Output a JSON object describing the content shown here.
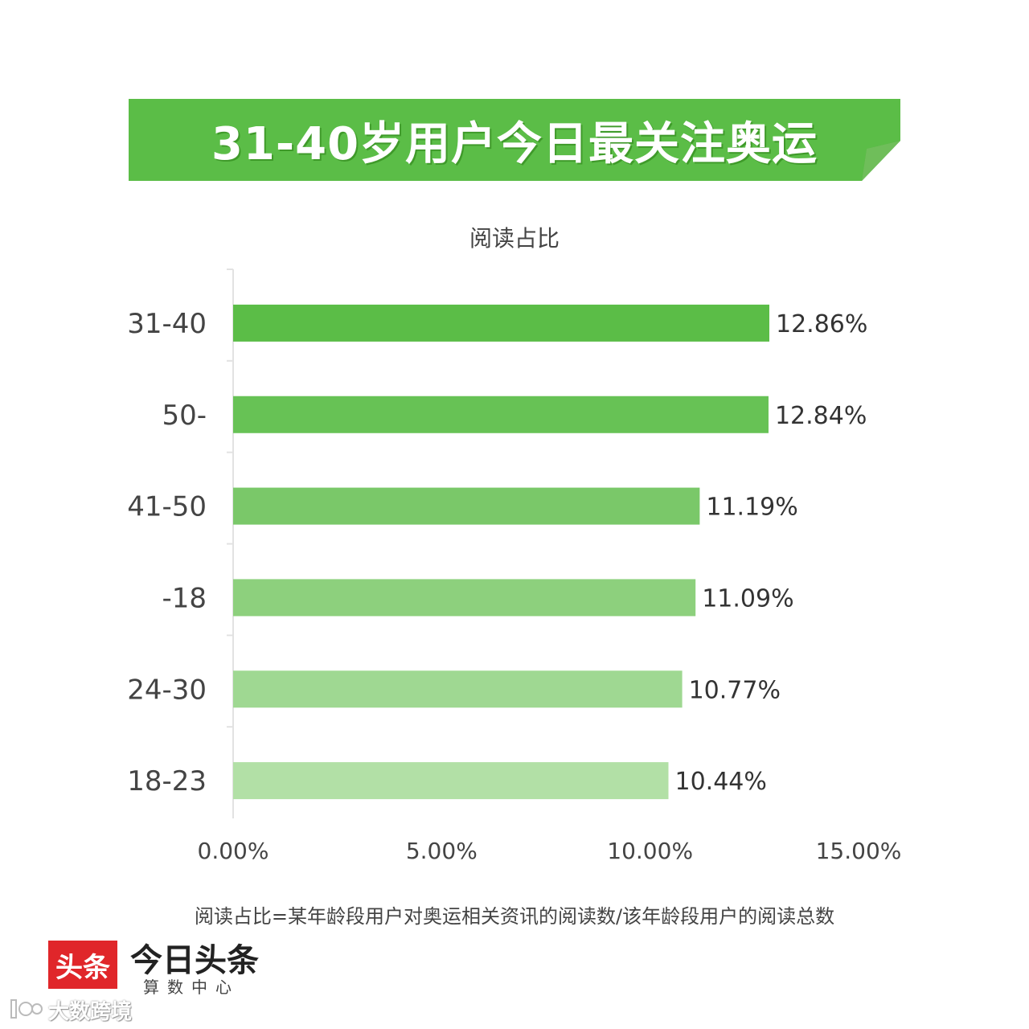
{
  "banner": {
    "title": "31-40岁用户今日最关注奥运",
    "color": "#5bbd47",
    "fold_color": "#3f9a2a"
  },
  "chart_data": {
    "type": "bar",
    "orientation": "horizontal",
    "title": "阅读占比",
    "categories": [
      "31-40",
      "50-",
      "41-50",
      "-18",
      "24-30",
      "18-23"
    ],
    "values": [
      12.86,
      12.84,
      11.19,
      11.09,
      10.77,
      10.44
    ],
    "value_labels": [
      "12.86%",
      "12.84%",
      "11.19%",
      "11.09%",
      "10.77%",
      "10.44%"
    ],
    "bar_colors": [
      "#5bbd47",
      "#67c255",
      "#7ac869",
      "#8dd07d",
      "#9fd892",
      "#b2e0a6"
    ],
    "xlim": [
      0,
      15
    ],
    "xticks": [
      0,
      5,
      10,
      15
    ],
    "xtick_labels": [
      "0.00%",
      "5.00%",
      "10.00%",
      "15.00%"
    ],
    "xlabel": "",
    "ylabel": "",
    "grid": false,
    "legend": "none"
  },
  "footnote": "阅读占比=某年龄段用户对奥运相关资讯的阅读数/该年龄段用户的阅读总数",
  "logo": {
    "badge": "头条",
    "name": "今日头条",
    "sub": "算数中心"
  },
  "watermark": {
    "text": "大数跨境",
    "icon": "brand-logo-icon"
  }
}
